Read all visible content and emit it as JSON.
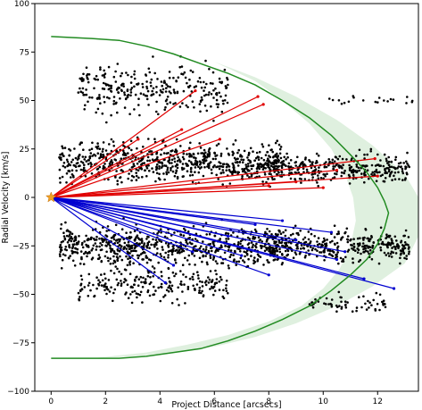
{
  "chart_data": {
    "type": "scatter",
    "xlabel": "Project Distance [arcsecs]",
    "ylabel": "Radial Velocity [km/s]",
    "xlim": [
      -0.6,
      13.5
    ],
    "ylim": [
      -100,
      100
    ],
    "xticks": [
      0,
      2,
      4,
      6,
      8,
      10,
      12
    ],
    "yticks": [
      -100,
      -75,
      -50,
      -25,
      0,
      25,
      50,
      75,
      100
    ],
    "grid": false,
    "legend": "none",
    "colors": {
      "points": "#000000",
      "redshifted_rays": "#e00000",
      "blueshifted_rays": "#0000d0",
      "envelope_line": "#228b22",
      "envelope_band": "#dff0df",
      "origin_marker": "#f0a020"
    },
    "origin_marker": {
      "x": 0,
      "y": 0,
      "shape": "star"
    },
    "envelope_curve": {
      "x": [
        0,
        1.5,
        2.5,
        3.5,
        4.5,
        5.5,
        6.5,
        7.5,
        8.5,
        9.5,
        10.3,
        11.0,
        11.6,
        12.0,
        12.25,
        12.4,
        12.25,
        12.0,
        11.6,
        11.0,
        10.3,
        9.5,
        8.5,
        7.5,
        6.5,
        5.5,
        4.5,
        3.5,
        2.5,
        1.5,
        0
      ],
      "y": [
        83,
        82,
        81,
        78,
        74,
        69,
        64,
        58,
        50,
        41,
        32,
        22,
        13,
        5,
        -2,
        -8,
        -16,
        -24,
        -32,
        -40,
        -48,
        -56,
        -63,
        -69,
        -74,
        -78,
        -80,
        -82,
        -83,
        -83,
        -83
      ]
    },
    "envelope_band": {
      "upper_x": [
        1.5,
        3,
        4.5,
        6,
        7.5,
        9,
        10.5,
        11.8,
        13.0,
        13.5,
        13.5,
        13.0,
        11.8,
        10.5,
        9,
        7.5,
        6,
        4.5,
        3,
        1.5
      ],
      "upper_y": [
        82,
        80,
        76,
        70,
        62,
        52,
        40,
        27,
        12,
        0,
        -20,
        -34,
        -46,
        -56,
        -65,
        -72,
        -77,
        -80,
        -82,
        -83
      ],
      "lower_x": [
        1.5,
        3,
        4.5,
        6,
        7.5,
        8.5,
        9.5,
        10.3,
        10.8,
        11.1,
        11.2,
        11.0,
        10.6,
        10.0,
        9.2,
        8.0,
        6.5,
        5.0,
        3.5,
        1.5
      ],
      "lower_y": [
        82,
        80,
        76,
        70,
        60,
        50,
        38,
        25,
        12,
        0,
        -12,
        -25,
        -37,
        -47,
        -56,
        -64,
        -71,
        -76,
        -80,
        -83
      ]
    },
    "redshifted_rays": [
      {
        "x": 5.3,
        "y": 55
      },
      {
        "x": 7.6,
        "y": 52
      },
      {
        "x": 7.8,
        "y": 48
      },
      {
        "x": 3.2,
        "y": 30
      },
      {
        "x": 4.8,
        "y": 35
      },
      {
        "x": 6.2,
        "y": 30
      },
      {
        "x": 11.9,
        "y": 20
      },
      {
        "x": 10.5,
        "y": 14
      },
      {
        "x": 12.0,
        "y": 11
      },
      {
        "x": 9.0,
        "y": 8
      },
      {
        "x": 8.0,
        "y": 6
      },
      {
        "x": 10.0,
        "y": 5
      }
    ],
    "blueshifted_rays": [
      {
        "x": 8.5,
        "y": -12
      },
      {
        "x": 7.5,
        "y": -14
      },
      {
        "x": 10.3,
        "y": -18
      },
      {
        "x": 6.5,
        "y": -20
      },
      {
        "x": 9.0,
        "y": -22
      },
      {
        "x": 10.8,
        "y": -28
      },
      {
        "x": 7.0,
        "y": -30
      },
      {
        "x": 10.5,
        "y": -32
      },
      {
        "x": 12.6,
        "y": -47
      },
      {
        "x": 4.5,
        "y": -35
      },
      {
        "x": 5.2,
        "y": -28
      },
      {
        "x": 8.0,
        "y": -40
      },
      {
        "x": 11.5,
        "y": -42
      },
      {
        "x": 4.2,
        "y": -44
      }
    ],
    "scatter_clusters": [
      {
        "x_min": 0.3,
        "x_max": 8.5,
        "y_center": 18,
        "y_spread": 14,
        "count": 700
      },
      {
        "x_min": 0.3,
        "x_max": 8.5,
        "y_center": -25,
        "y_spread": 14,
        "count": 700
      },
      {
        "x_min": 1.0,
        "x_max": 6.5,
        "y_center": 55,
        "y_spread": 18,
        "count": 280
      },
      {
        "x_min": 1.0,
        "x_max": 6.5,
        "y_center": -45,
        "y_spread": 12,
        "count": 220
      },
      {
        "x_min": 8.0,
        "x_max": 13.2,
        "y_center": 15,
        "y_spread": 10,
        "count": 330
      },
      {
        "x_min": 8.0,
        "x_max": 13.2,
        "y_center": -25,
        "y_spread": 12,
        "count": 360
      },
      {
        "x_min": 9.5,
        "x_max": 12.5,
        "y_center": -55,
        "y_spread": 6,
        "count": 60
      },
      {
        "x_min": 10.0,
        "x_max": 13.3,
        "y_center": 50,
        "y_spread": 3,
        "count": 20
      }
    ]
  }
}
